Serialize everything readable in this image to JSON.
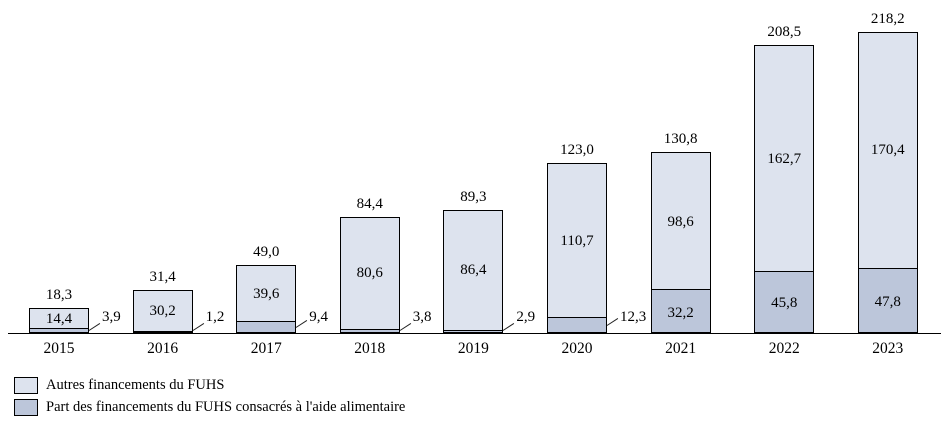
{
  "chart_data": {
    "type": "bar",
    "stacked": true,
    "title": "",
    "xlabel": "",
    "ylabel": "",
    "ylim": [
      0,
      230
    ],
    "grid": false,
    "legend_position": "bottom-left",
    "decimal_style": "comma",
    "categories": [
      "2015",
      "2016",
      "2017",
      "2018",
      "2019",
      "2020",
      "2021",
      "2022",
      "2023"
    ],
    "series": [
      {
        "name": "Part des financements du FUHS consacrés à l'aide alimentaire",
        "stack_order": "bottom",
        "color": "#bcc6da",
        "values": [
          3.9,
          1.2,
          9.4,
          3.8,
          2.9,
          12.3,
          32.2,
          45.8,
          47.8
        ],
        "labels": [
          "3,9",
          "1,2",
          "9,4",
          "3,8",
          "2,9",
          "12,3",
          "32,2",
          "45,8",
          "47,8"
        ]
      },
      {
        "name": "Autres financements du FUHS",
        "stack_order": "top",
        "color": "#dde3ee",
        "values": [
          14.4,
          30.2,
          39.6,
          80.6,
          86.4,
          110.7,
          98.6,
          162.7,
          170.4
        ],
        "labels": [
          "14,4",
          "30,2",
          "39,6",
          "80,6",
          "86,4",
          "110,7",
          "98,6",
          "162,7",
          "170,4"
        ]
      }
    ],
    "totals": [
      18.3,
      31.4,
      49.0,
      84.4,
      89.3,
      123.0,
      130.8,
      208.5,
      218.2
    ],
    "total_labels": [
      "18,3",
      "31,4",
      "49,0",
      "84,4",
      "89,3",
      "123,0",
      "130,8",
      "208,5",
      "218,2"
    ]
  },
  "legend": {
    "items": [
      {
        "label": "Autres financements du FUHS",
        "color": "#dde3ee"
      },
      {
        "label": "Part des financements du FUHS consacrés à l'aide alimentaire",
        "color": "#bcc6da"
      }
    ]
  }
}
